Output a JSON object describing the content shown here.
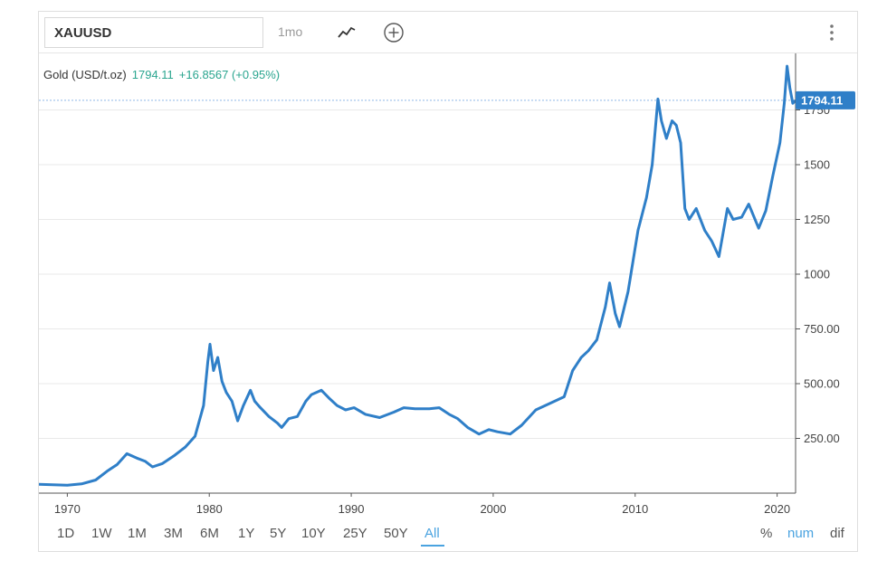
{
  "toolbar": {
    "symbol_value": "XAUUSD",
    "period_label": "1mo",
    "chart_type_icon": "line-chart-icon",
    "add_icon": "plus-circle-icon",
    "menu_icon": "more-vertical-icon"
  },
  "quote": {
    "name": "Gold (USD/t.oz)",
    "price": "1794.11",
    "change": "+16.8567 (+0.95%)"
  },
  "last_price_label": "1794.11",
  "ranges": [
    "1D",
    "1W",
    "1M",
    "3M",
    "6M",
    "1Y",
    "5Y",
    "10Y",
    "25Y",
    "50Y",
    "All"
  ],
  "active_range": "All",
  "modes": [
    "%",
    "num",
    "dif"
  ],
  "active_mode": "num",
  "colors": {
    "line": "#2f7fc8",
    "quote_green": "#2aa58f",
    "active_blue": "#4aa3e0",
    "price_tag": "#2f7fc8"
  },
  "chart_data": {
    "type": "line",
    "title": "",
    "xlabel": "",
    "ylabel": "",
    "x_ticks": [
      "1970",
      "1980",
      "1990",
      "2000",
      "2010",
      "2020"
    ],
    "y_ticks": [
      "250.00",
      "500.00",
      "750.00",
      "1000",
      "1250",
      "1500",
      "1750"
    ],
    "xlim": [
      1968.0,
      2021.3
    ],
    "ylim": [
      0,
      2000
    ],
    "reference_line": 1794.11,
    "grid": "horizontal",
    "series": [
      {
        "x": [
          1968.0,
          1970.0,
          1971.0,
          1972.0,
          1972.8,
          1973.5,
          1974.2,
          1974.9,
          1975.5,
          1976.0,
          1976.7,
          1977.5,
          1978.3,
          1979.0,
          1979.6,
          1979.9,
          1980.05,
          1980.3,
          1980.6,
          1980.9,
          1981.2,
          1981.6,
          1982.0,
          1982.4,
          1982.9,
          1983.2,
          1983.6,
          1984.2,
          1984.8,
          1985.1,
          1985.6,
          1986.2,
          1986.8,
          1987.2,
          1987.9,
          1988.5,
          1989.0,
          1989.6,
          1990.2,
          1991.0,
          1992.0,
          1993.0,
          1993.7,
          1994.5,
          1995.5,
          1996.2,
          1996.9,
          1997.5,
          1998.2,
          1999.0,
          1999.7,
          2000.3,
          2001.2,
          2002.0,
          2003.0,
          2004.0,
          2005.0,
          2005.6,
          2006.2,
          2006.7,
          2007.3,
          2007.9,
          2008.2,
          2008.6,
          2008.9,
          2009.5,
          2010.2,
          2010.8,
          2011.2,
          2011.6,
          2011.85,
          2012.2,
          2012.6,
          2012.9,
          2013.2,
          2013.5,
          2013.8,
          2014.3,
          2014.9,
          2015.4,
          2015.9,
          2016.5,
          2016.9,
          2017.5,
          2018.0,
          2018.7,
          2019.2,
          2019.7,
          2020.2,
          2020.5,
          2020.7,
          2020.9,
          2021.1,
          2021.3
        ],
        "y": [
          40,
          36,
          42,
          60,
          100,
          130,
          180,
          160,
          145,
          120,
          135,
          170,
          210,
          260,
          400,
          600,
          680,
          560,
          620,
          510,
          460,
          420,
          330,
          400,
          470,
          420,
          390,
          350,
          320,
          300,
          340,
          350,
          420,
          450,
          470,
          430,
          400,
          380,
          390,
          360,
          345,
          370,
          390,
          385,
          385,
          390,
          360,
          340,
          300,
          270,
          290,
          280,
          270,
          310,
          380,
          410,
          440,
          560,
          620,
          650,
          700,
          850,
          960,
          820,
          760,
          920,
          1200,
          1350,
          1500,
          1800,
          1700,
          1620,
          1700,
          1680,
          1600,
          1300,
          1250,
          1300,
          1200,
          1150,
          1080,
          1300,
          1250,
          1260,
          1320,
          1210,
          1290,
          1450,
          1600,
          1780,
          1950,
          1850,
          1780,
          1794
        ]
      }
    ]
  }
}
